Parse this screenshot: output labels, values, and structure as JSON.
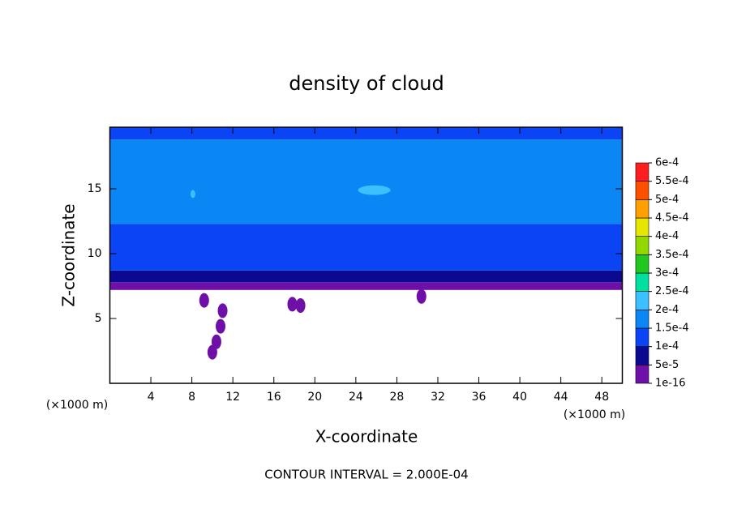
{
  "chart_data": {
    "type": "contour",
    "title": "density of cloud",
    "x_label": "X-coordinate",
    "y_label": "Z-coordinate",
    "x_unit": "(×1000 m)",
    "y_unit": "(×1000 m)",
    "footer": "CONTOUR INTERVAL = 2.000E-04",
    "xlim": [
      0,
      50
    ],
    "ylim": [
      0,
      19.75
    ],
    "xticks": [
      4,
      8,
      12,
      16,
      20,
      24,
      28,
      32,
      36,
      40,
      44,
      48
    ],
    "yticks": [
      5,
      10,
      15
    ],
    "layers": [
      {
        "z": [
          7.2,
          7.8
        ],
        "value": 2.5e-05
      },
      {
        "z": [
          7.8,
          8.7
        ],
        "value": 7.5e-05
      },
      {
        "z": [
          8.7,
          12.3
        ],
        "value": 0.000125
      },
      {
        "z": [
          12.3,
          18.8
        ],
        "value": 0.000175
      },
      {
        "z": [
          18.8,
          19.75
        ],
        "value": 0.000125
      }
    ],
    "patches": [
      {
        "x": 25.8,
        "z": 14.9,
        "value": 0.000225
      },
      {
        "x": 8.1,
        "z": 14.6,
        "value": 0.000225
      },
      {
        "x": 10.0,
        "z": 2.4,
        "value": 2.5e-05
      },
      {
        "x": 10.4,
        "z": 3.2,
        "value": 2.5e-05
      },
      {
        "x": 10.8,
        "z": 4.4,
        "value": 2.5e-05
      },
      {
        "x": 11.0,
        "z": 5.6,
        "value": 2.5e-05
      },
      {
        "x": 9.2,
        "z": 6.4,
        "value": 2.5e-05
      },
      {
        "x": 17.8,
        "z": 6.1,
        "value": 2.5e-05
      },
      {
        "x": 18.6,
        "z": 6.0,
        "value": 2.5e-05
      },
      {
        "x": 30.4,
        "z": 6.7,
        "value": 2.5e-05
      }
    ],
    "colorbar": {
      "ticks": [
        {
          "value": 1e-16,
          "label": "1e-16"
        },
        {
          "value": 5e-05,
          "label": "5e-5"
        },
        {
          "value": 0.0001,
          "label": "1e-4"
        },
        {
          "value": 0.00015,
          "label": "1.5e-4"
        },
        {
          "value": 0.0002,
          "label": "2e-4"
        },
        {
          "value": 0.00025,
          "label": "2.5e-4"
        },
        {
          "value": 0.0003,
          "label": "3e-4"
        },
        {
          "value": 0.00035,
          "label": "3.5e-4"
        },
        {
          "value": 0.0004,
          "label": "4e-4"
        },
        {
          "value": 0.00045,
          "label": "4.5e-4"
        },
        {
          "value": 0.0005,
          "label": "5e-4"
        },
        {
          "value": 0.00055,
          "label": "5.5e-4"
        },
        {
          "value": 0.0006,
          "label": "6e-4"
        }
      ],
      "colors": [
        "#6e10a8",
        "#0a0a90",
        "#0a44f5",
        "#0a86f5",
        "#3cc0ff",
        "#00e0a0",
        "#20c820",
        "#90d800",
        "#e6e600",
        "#ffa000",
        "#ff5000",
        "#ff1e1e"
      ]
    }
  }
}
